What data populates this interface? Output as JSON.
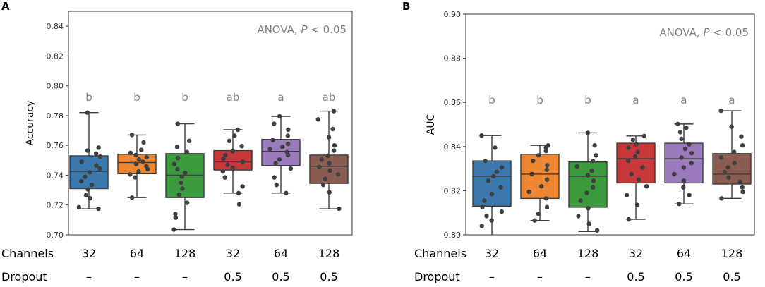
{
  "chart_data": [
    {
      "type": "box",
      "panel": "A",
      "ylabel": "Accuracy",
      "ylim": [
        0.7,
        0.85
      ],
      "yticks": [
        "0.70",
        "0.72",
        "0.74",
        "0.76",
        "0.78",
        "0.80",
        "0.82",
        "0.84"
      ],
      "annotation": "ANOVA, ",
      "annotation_p": "P",
      "annotation_tail": " < 0.05",
      "groups": [
        {
          "channels": "32",
          "dropout": "–",
          "color": "#3a78ad",
          "q1": 0.731,
          "median": 0.7425,
          "q3": 0.753,
          "whisker_low": 0.7175,
          "whisker_high": 0.782,
          "letter": "b",
          "points": [
            0.7175,
            0.7185,
            0.7245,
            0.7265,
            0.7305,
            0.7335,
            0.736,
            0.739,
            0.742,
            0.7445,
            0.7465,
            0.749,
            0.7525,
            0.7545,
            0.7565,
            0.7585,
            0.782
          ]
        },
        {
          "channels": "64",
          "dropout": "–",
          "color": "#ee8733",
          "q1": 0.741,
          "median": 0.7485,
          "q3": 0.754,
          "whisker_low": 0.725,
          "whisker_high": 0.767,
          "letter": "b",
          "points": [
            0.725,
            0.7385,
            0.7405,
            0.7425,
            0.744,
            0.746,
            0.7475,
            0.749,
            0.7505,
            0.752,
            0.7535,
            0.755,
            0.757,
            0.762,
            0.767
          ]
        },
        {
          "channels": "128",
          "dropout": "–",
          "color": "#3a9a3d",
          "q1": 0.725,
          "median": 0.74,
          "q3": 0.7545,
          "whisker_low": 0.7035,
          "whisker_high": 0.7745,
          "letter": "b",
          "points": [
            0.7035,
            0.7115,
            0.714,
            0.7215,
            0.727,
            0.731,
            0.735,
            0.739,
            0.7415,
            0.744,
            0.7475,
            0.7515,
            0.7555,
            0.759,
            0.763,
            0.7745
          ]
        },
        {
          "channels": "32",
          "dropout": "0.5",
          "color": "#c8373a",
          "q1": 0.7435,
          "median": 0.749,
          "q3": 0.7565,
          "whisker_low": 0.728,
          "whisker_high": 0.7705,
          "letter": "ab",
          "points": [
            0.7205,
            0.728,
            0.7325,
            0.7385,
            0.7425,
            0.745,
            0.747,
            0.749,
            0.751,
            0.7535,
            0.756,
            0.7595,
            0.763,
            0.7665,
            0.7705
          ]
        },
        {
          "channels": "64",
          "dropout": "0.5",
          "color": "#9a7cbc",
          "q1": 0.7465,
          "median": 0.756,
          "q3": 0.764,
          "whisker_low": 0.728,
          "whisker_high": 0.7795,
          "letter": "a",
          "points": [
            0.728,
            0.7335,
            0.7385,
            0.7445,
            0.748,
            0.7505,
            0.7535,
            0.7555,
            0.7575,
            0.759,
            0.761,
            0.7635,
            0.7665,
            0.7705,
            0.7745,
            0.7795
          ]
        },
        {
          "channels": "128",
          "dropout": "0.5",
          "color": "#8b5c52",
          "q1": 0.7345,
          "median": 0.746,
          "q3": 0.7535,
          "whisker_low": 0.7175,
          "whisker_high": 0.783,
          "letter": "ab",
          "points": [
            0.7175,
            0.7285,
            0.7335,
            0.7375,
            0.7405,
            0.743,
            0.7455,
            0.748,
            0.7505,
            0.753,
            0.7565,
            0.76,
            0.7655,
            0.771,
            0.7775,
            0.783
          ]
        }
      ]
    },
    {
      "type": "box",
      "panel": "B",
      "ylabel": "AUC",
      "ylim": [
        0.8,
        0.9
      ],
      "yticks": [
        "0.80",
        "0.82",
        "0.84",
        "0.86",
        "0.88",
        "0.90"
      ],
      "annotation": "ANOVA, ",
      "annotation_p": "P",
      "annotation_tail": " < 0.05",
      "groups": [
        {
          "channels": "32",
          "dropout": "–",
          "color": "#3a78ad",
          "q1": 0.813,
          "median": 0.8265,
          "q3": 0.8335,
          "whisker_low": 0.7995,
          "whisker_high": 0.845,
          "letter": "b",
          "points": [
            0.804,
            0.8065,
            0.8085,
            0.8105,
            0.8125,
            0.8155,
            0.8185,
            0.8215,
            0.8245,
            0.8265,
            0.8285,
            0.8305,
            0.8335,
            0.8395,
            0.845
          ]
        },
        {
          "channels": "64",
          "dropout": "–",
          "color": "#ee8733",
          "q1": 0.8165,
          "median": 0.8275,
          "q3": 0.8365,
          "whisker_low": 0.8065,
          "whisker_high": 0.8405,
          "letter": "b",
          "points": [
            0.8065,
            0.8095,
            0.8125,
            0.8165,
            0.8195,
            0.822,
            0.825,
            0.8275,
            0.8295,
            0.8315,
            0.8335,
            0.836,
            0.838,
            0.8395,
            0.8405
          ]
        },
        {
          "channels": "128",
          "dropout": "–",
          "color": "#3a9a3d",
          "q1": 0.8125,
          "median": 0.8265,
          "q3": 0.833,
          "whisker_low": 0.8015,
          "whisker_high": 0.8462,
          "letter": "b",
          "points": [
            0.802,
            0.805,
            0.8085,
            0.812,
            0.8155,
            0.819,
            0.8215,
            0.8245,
            0.827,
            0.829,
            0.831,
            0.8335,
            0.836,
            0.8405,
            0.8462
          ]
        },
        {
          "channels": "32",
          "dropout": "0.5",
          "color": "#c8373a",
          "q1": 0.8235,
          "median": 0.8345,
          "q3": 0.8415,
          "whisker_low": 0.807,
          "whisker_high": 0.8448,
          "letter": "a",
          "points": [
            0.807,
            0.8135,
            0.818,
            0.822,
            0.825,
            0.8275,
            0.8305,
            0.8335,
            0.8355,
            0.8375,
            0.8395,
            0.841,
            0.843,
            0.8448
          ]
        },
        {
          "channels": "64",
          "dropout": "0.5",
          "color": "#9a7cbc",
          "q1": 0.8235,
          "median": 0.8345,
          "q3": 0.8415,
          "whisker_low": 0.814,
          "whisker_high": 0.8502,
          "letter": "a",
          "points": [
            0.814,
            0.818,
            0.8215,
            0.8245,
            0.8275,
            0.8305,
            0.8325,
            0.835,
            0.837,
            0.839,
            0.841,
            0.8435,
            0.8465,
            0.8485,
            0.8502
          ]
        },
        {
          "channels": "128",
          "dropout": "0.5",
          "color": "#8b5c52",
          "q1": 0.823,
          "median": 0.8275,
          "q3": 0.8368,
          "whisker_low": 0.8165,
          "whisker_high": 0.8562,
          "letter": "a",
          "points": [
            0.8165,
            0.8195,
            0.8215,
            0.824,
            0.826,
            0.8285,
            0.8305,
            0.8325,
            0.835,
            0.8375,
            0.8405,
            0.8445,
            0.849,
            0.8562
          ]
        }
      ]
    }
  ],
  "rows": {
    "channels_label": "Channels",
    "dropout_label": "Dropout"
  }
}
